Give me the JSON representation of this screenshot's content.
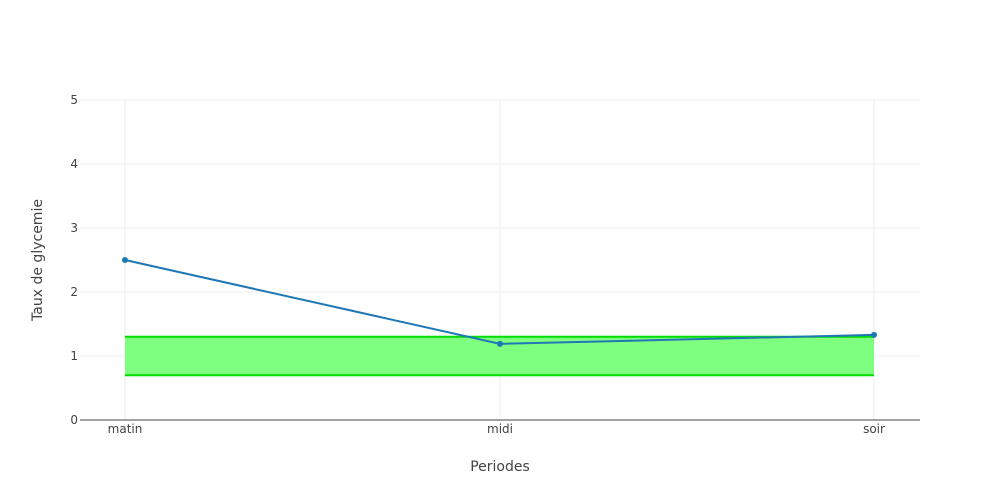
{
  "chart_data": {
    "type": "line",
    "title": "",
    "xlabel": "Periodes",
    "ylabel": "Taux de glycemie",
    "categories": [
      "matin",
      "midi",
      "soir"
    ],
    "ylim": [
      0,
      5
    ],
    "yticks": [
      0,
      1,
      2,
      3,
      4,
      5
    ],
    "grid": true,
    "legend": "none",
    "series": [
      {
        "values": [
          2.5,
          1.19,
          1.33
        ],
        "color": "#1f77b4"
      }
    ],
    "band": {
      "lower": 0.7,
      "upper": 1.3,
      "fill_color": "#7fff7f",
      "line_color": "#00dd00"
    }
  }
}
